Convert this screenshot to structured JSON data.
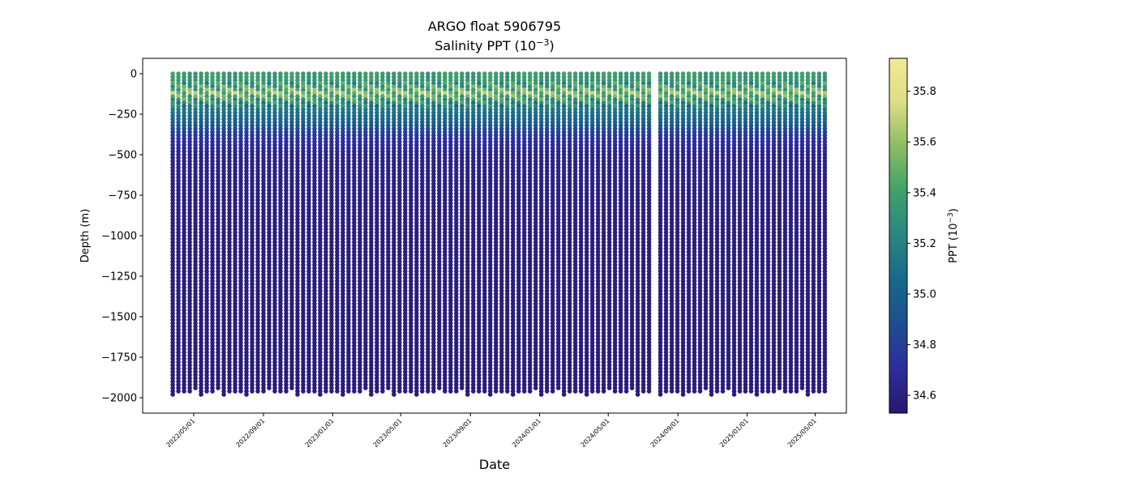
{
  "chart_data": {
    "type": "scatter",
    "title": "ARGO float 5906795",
    "subtitle_prefix": "Salinity PPT (10",
    "subtitle_exp": "−3",
    "subtitle_suffix": ")",
    "xlabel": "Date",
    "ylabel": "Depth (m)",
    "colorbar_label_prefix": "PPT (10",
    "colorbar_label_exp": "−3",
    "colorbar_label_suffix": ")",
    "xlim": [
      "2022-01-31",
      "2025-06-25"
    ],
    "ylim": [
      -2095,
      95
    ],
    "y_ticks": [
      0,
      -250,
      -500,
      -750,
      -1000,
      -1250,
      -1500,
      -1750,
      -2000
    ],
    "y_tick_labels": [
      "0",
      "−250",
      "−500",
      "−750",
      "−1000",
      "−1250",
      "−1500",
      "−1750",
      "−2000"
    ],
    "x_ticks": [
      "2022-05-01",
      "2022-09-01",
      "2023-01-01",
      "2023-05-01",
      "2023-09-01",
      "2024-01-01",
      "2024-05-01",
      "2024-09-01",
      "2025-01-01",
      "2025-05-01"
    ],
    "x_tick_labels": [
      "2022/05/01",
      "2022/09/01",
      "2023/01/01",
      "2023/05/01",
      "2023/09/01",
      "2024/01/01",
      "2024/05/01",
      "2024/09/01",
      "2025/01/01",
      "2025/05/01"
    ],
    "colorbar_range": [
      34.53,
      35.93
    ],
    "colorbar_ticks": [
      34.6,
      34.8,
      35.0,
      35.2,
      35.4,
      35.6,
      35.8
    ],
    "colorbar_tick_labels": [
      "34.6",
      "34.8",
      "35.0",
      "35.2",
      "35.4",
      "35.6",
      "35.8"
    ],
    "colormap": "haline",
    "colormap_stops": [
      "#2a186c",
      "#2c2d9e",
      "#1e4d8f",
      "#186889",
      "#2a8581",
      "#3ea16b",
      "#8bbc63",
      "#dedc86",
      "#f1eb94"
    ],
    "profile_cycle_days": 10,
    "profile_start": "2022-03-25",
    "profile_end": "2025-05-26",
    "gap_start": "2024-07-20",
    "gap_end": "2024-07-28",
    "profile_min_depth": 0,
    "profile_max_depth": -1985,
    "salinity_profile": [
      {
        "depth": 0,
        "salinity": 35.38
      },
      {
        "depth": -60,
        "salinity": 35.32
      },
      {
        "depth": -120,
        "salinity": 35.55
      },
      {
        "depth": -200,
        "salinity": 35.18
      },
      {
        "depth": -300,
        "salinity": 35.0
      },
      {
        "depth": -380,
        "salinity": 34.75
      },
      {
        "depth": -500,
        "salinity": 34.62
      },
      {
        "depth": -1000,
        "salinity": 34.58
      },
      {
        "depth": -2000,
        "salinity": 34.57
      }
    ]
  }
}
